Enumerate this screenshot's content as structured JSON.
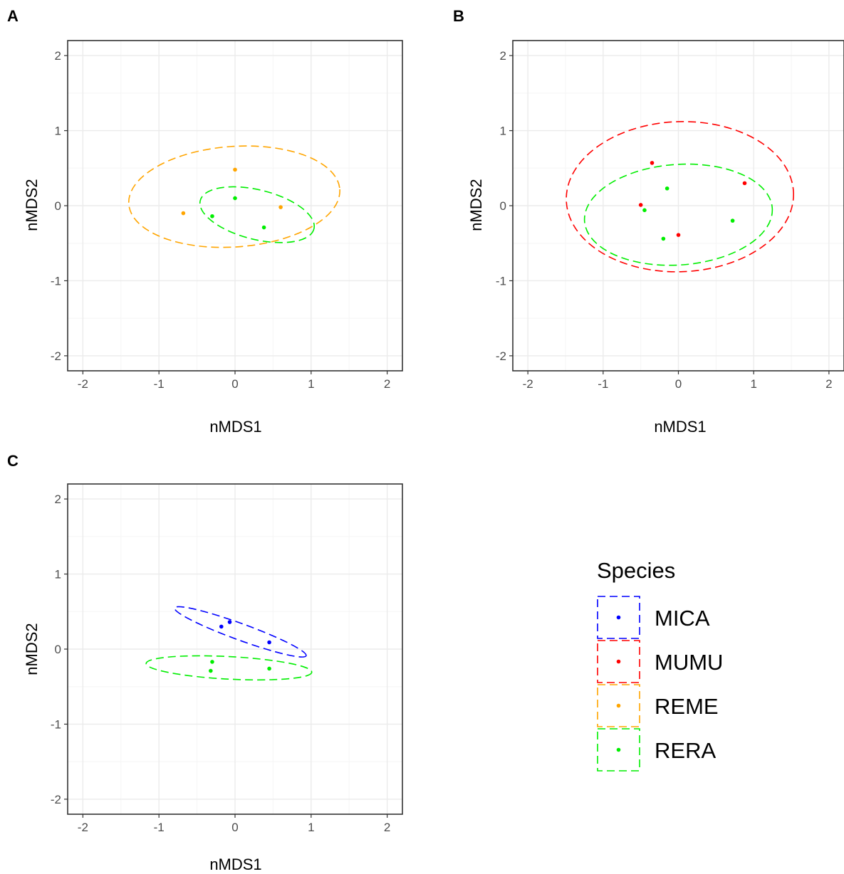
{
  "colors": {
    "MICA": "#0000ff",
    "MUMU": "#ff0000",
    "REME": "#ffa500",
    "RERA": "#00ee00",
    "grid_major": "#ebebeb",
    "grid_minor": "#f5f5f5",
    "panel_border": "#333333"
  },
  "chart_data": [
    {
      "type": "scatter",
      "panel": "A",
      "xlabel": "nMDS1",
      "ylabel": "nMDS2",
      "xlim": [
        -2.2,
        2.2
      ],
      "ylim": [
        -2.2,
        2.2
      ],
      "xticks": [
        "-2",
        "-1",
        "0",
        "1",
        "2"
      ],
      "yticks": [
        "-2",
        "-1",
        "0",
        "1",
        "2"
      ],
      "grid": true,
      "series": [
        {
          "name": "REME",
          "points": [
            [
              0.0,
              0.48
            ],
            [
              -0.68,
              -0.1
            ],
            [
              0.6,
              -0.02
            ]
          ],
          "ellipse": {
            "cx": -0.01,
            "cy": 0.12,
            "rx": 1.39,
            "ry": 0.67,
            "angle": 4
          }
        },
        {
          "name": "RERA",
          "points": [
            [
              0.0,
              0.1
            ],
            [
              -0.3,
              -0.14
            ],
            [
              0.38,
              -0.29
            ]
          ],
          "ellipse": {
            "cx": 0.29,
            "cy": -0.12,
            "rx": 0.77,
            "ry": 0.33,
            "angle": -14
          }
        }
      ]
    },
    {
      "type": "scatter",
      "panel": "B",
      "xlabel": "nMDS1",
      "ylabel": "nMDS2",
      "xlim": [
        -2.2,
        2.2
      ],
      "ylim": [
        -2.2,
        2.2
      ],
      "xticks": [
        "-2",
        "-1",
        "0",
        "1",
        "2"
      ],
      "yticks": [
        "-2",
        "-1",
        "0",
        "1",
        "2"
      ],
      "grid": true,
      "series": [
        {
          "name": "MUMU",
          "points": [
            [
              -0.35,
              0.57
            ],
            [
              0.88,
              0.3
            ],
            [
              -0.5,
              0.01
            ],
            [
              0.0,
              -0.39
            ]
          ],
          "ellipse": {
            "cx": 0.02,
            "cy": 0.12,
            "rx": 1.51,
            "ry": 1.0,
            "angle": 2
          }
        },
        {
          "name": "RERA",
          "points": [
            [
              -0.15,
              0.23
            ],
            [
              -0.45,
              -0.06
            ],
            [
              0.72,
              -0.2
            ],
            [
              -0.2,
              -0.44
            ]
          ],
          "ellipse": {
            "cx": 0.0,
            "cy": -0.12,
            "rx": 1.25,
            "ry": 0.67,
            "angle": 4
          }
        }
      ]
    },
    {
      "type": "scatter",
      "panel": "C",
      "xlabel": "nMDS1",
      "ylabel": "nMDS2",
      "xlim": [
        -2.2,
        2.2
      ],
      "ylim": [
        -2.2,
        2.2
      ],
      "xticks": [
        "-2",
        "-1",
        "0",
        "1",
        "2"
      ],
      "yticks": [
        "-2",
        "-1",
        "0",
        "1",
        "2"
      ],
      "grid": true,
      "series": [
        {
          "name": "MICA",
          "points": [
            [
              -0.18,
              0.3
            ],
            [
              -0.07,
              0.36
            ],
            [
              0.45,
              0.09
            ]
          ],
          "ellipse": {
            "cx": 0.07,
            "cy": 0.23,
            "rx": 0.92,
            "ry": 0.11,
            "angle": -20
          }
        },
        {
          "name": "RERA",
          "points": [
            [
              -0.3,
              -0.17
            ],
            [
              -0.32,
              -0.29
            ],
            [
              0.45,
              -0.26
            ]
          ],
          "ellipse": {
            "cx": -0.08,
            "cy": -0.25,
            "rx": 1.09,
            "ry": 0.15,
            "angle": -3
          }
        }
      ]
    }
  ],
  "legend": {
    "title": "Species",
    "placement": "bottom-right",
    "items": [
      {
        "label": "MICA",
        "key": "MICA"
      },
      {
        "label": "MUMU",
        "key": "MUMU"
      },
      {
        "label": "REME",
        "key": "REME"
      },
      {
        "label": "RERA",
        "key": "RERA"
      }
    ]
  }
}
